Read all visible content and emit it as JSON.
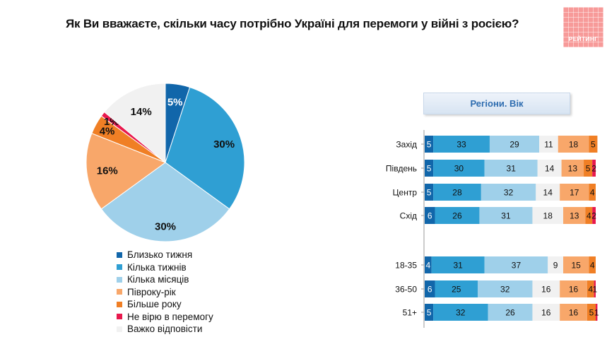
{
  "title": "Як Ви вважаєте, скільки часу потрібно Україні для перемоги у війні з росією?",
  "logo": {
    "text": "РЕЙТИНГ",
    "color": "#f79a99"
  },
  "colors": [
    "#1166aa",
    "#2f9fd3",
    "#9fd0ea",
    "#f8a76a",
    "#f07f25",
    "#e8194d",
    "#f1f1f1"
  ],
  "chart_data": [
    {
      "type": "pie",
      "categories": [
        "Близько тижня",
        "Кілька тижнів",
        "Кілька місяців",
        "Півроку-рік",
        "Більше року",
        "Не вірю в перемогу",
        "Важко відповісти"
      ],
      "values": [
        5,
        30,
        30,
        16,
        4,
        1,
        14
      ],
      "labels": [
        "5%",
        "30%",
        "30%",
        "16%",
        "4%",
        "1%",
        "14%"
      ],
      "legend_position": "bottom"
    },
    {
      "type": "bar",
      "stacked": true,
      "orientation": "horizontal",
      "title": "Регіони. Вік",
      "categories": [
        "Захід",
        "Південь",
        "Центр",
        "Схід",
        "18-35",
        "36-50",
        "51+"
      ],
      "series": [
        {
          "name": "Близько тижня",
          "values": [
            5,
            5,
            5,
            6,
            4,
            6,
            5
          ]
        },
        {
          "name": "Кілька тижнів",
          "values": [
            33,
            30,
            28,
            26,
            31,
            25,
            32
          ]
        },
        {
          "name": "Кілька місяців",
          "values": [
            29,
            31,
            32,
            31,
            37,
            32,
            26
          ]
        },
        {
          "name": "Важко відповісти",
          "values": [
            11,
            14,
            14,
            18,
            9,
            16,
            16
          ]
        },
        {
          "name": "Півроку-рік",
          "values": [
            18,
            13,
            17,
            13,
            15,
            16,
            16
          ]
        },
        {
          "name": "Більше року",
          "values": [
            5,
            5,
            4,
            4,
            4,
            4,
            5
          ]
        },
        {
          "name": "Не вірю в перемогу",
          "values": [
            0,
            2,
            0,
            2,
            0,
            1,
            1
          ]
        }
      ]
    }
  ]
}
